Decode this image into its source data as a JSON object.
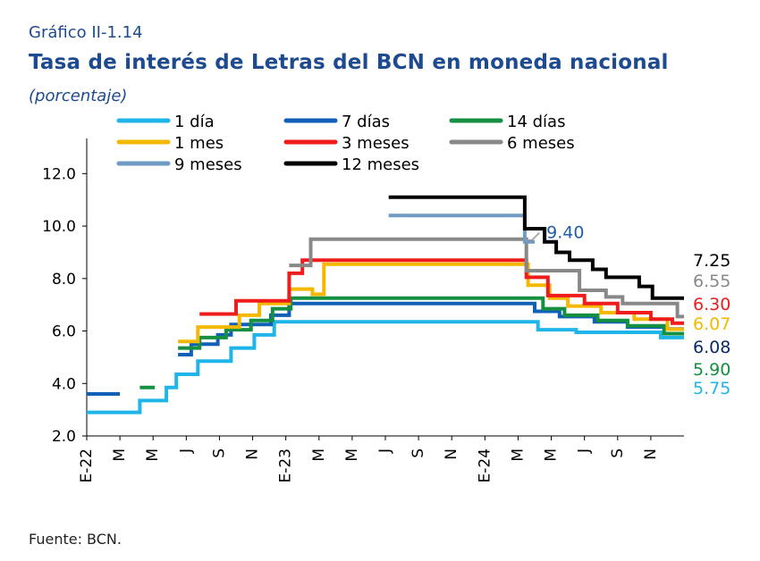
{
  "header": {
    "number": "Gráfico II-1.14",
    "title": "Tasa de interés de Letras del BCN en moneda nacional",
    "subtitle": "(porcentaje)"
  },
  "source": "Fuente: BCN.",
  "chart_data": {
    "type": "line",
    "ylim": [
      2.0,
      13.0
    ],
    "yticks": [
      "2.0",
      "4.0",
      "6.0",
      "8.0",
      "10.0",
      "12.0"
    ],
    "xlabel": "",
    "ylabel": "",
    "grid": false,
    "legend": "top",
    "x_range": [
      0,
      36
    ],
    "x_ticks": [
      {
        "x": 0,
        "label": "E-22"
      },
      {
        "x": 2,
        "label": "M"
      },
      {
        "x": 4,
        "label": "M"
      },
      {
        "x": 6,
        "label": "J"
      },
      {
        "x": 8,
        "label": "S"
      },
      {
        "x": 10,
        "label": "N"
      },
      {
        "x": 12,
        "label": "E-23"
      },
      {
        "x": 14,
        "label": "M"
      },
      {
        "x": 16,
        "label": "M"
      },
      {
        "x": 18,
        "label": "J"
      },
      {
        "x": 20,
        "label": "S"
      },
      {
        "x": 22,
        "label": "N"
      },
      {
        "x": 24,
        "label": "E-24"
      },
      {
        "x": 26,
        "label": "M"
      },
      {
        "x": 28,
        "label": "M"
      },
      {
        "x": 30,
        "label": "J"
      },
      {
        "x": 32,
        "label": "S"
      },
      {
        "x": 34,
        "label": "N"
      }
    ],
    "annotation": {
      "text": "9.40",
      "color": "#1f5fa8",
      "x": 26.2,
      "y": 9.4
    },
    "series": [
      {
        "name": "1 día",
        "color": "#1fb5e8",
        "end_label": "5.75",
        "segments": [
          [
            [
              0,
              2.9
            ],
            [
              3.2,
              2.9
            ],
            [
              3.2,
              3.35
            ],
            [
              4.8,
              3.35
            ],
            [
              4.8,
              3.85
            ],
            [
              5.4,
              3.85
            ],
            [
              5.4,
              4.35
            ],
            [
              6.7,
              4.35
            ],
            [
              6.7,
              4.85
            ],
            [
              8.7,
              4.85
            ],
            [
              8.7,
              5.35
            ],
            [
              10.1,
              5.35
            ],
            [
              10.1,
              5.85
            ],
            [
              11.3,
              5.85
            ],
            [
              11.3,
              6.35
            ],
            [
              27.2,
              6.35
            ],
            [
              27.2,
              6.05
            ],
            [
              29.5,
              6.05
            ],
            [
              29.5,
              5.95
            ],
            [
              34.6,
              5.95
            ],
            [
              34.6,
              5.75
            ],
            [
              36,
              5.75
            ]
          ]
        ]
      },
      {
        "name": "7 días",
        "color": "#1060b8",
        "end_label": "6.08",
        "segments": [
          [
            [
              0,
              3.6
            ],
            [
              2,
              3.6
            ]
          ],
          [
            [
              5.5,
              5.1
            ],
            [
              6.3,
              5.1
            ],
            [
              6.3,
              5.5
            ],
            [
              7.9,
              5.5
            ],
            [
              7.9,
              5.85
            ],
            [
              8.7,
              5.85
            ],
            [
              8.7,
              6.25
            ],
            [
              11.1,
              6.25
            ],
            [
              11.1,
              6.6
            ],
            [
              12.2,
              6.6
            ],
            [
              12.2,
              7.05
            ],
            [
              27.0,
              7.05
            ],
            [
              27.0,
              6.75
            ],
            [
              28.5,
              6.75
            ],
            [
              28.5,
              6.55
            ],
            [
              30.6,
              6.55
            ],
            [
              30.6,
              6.35
            ],
            [
              32.6,
              6.35
            ],
            [
              32.6,
              6.15
            ],
            [
              35.0,
              6.15
            ],
            [
              35.0,
              6.08
            ],
            [
              36,
              6.08
            ]
          ]
        ]
      },
      {
        "name": "14 días",
        "color": "#149040",
        "end_label": "5.90",
        "segments": [
          [
            [
              3.2,
              3.85
            ],
            [
              4.1,
              3.85
            ]
          ],
          [
            [
              5.5,
              5.35
            ],
            [
              6.8,
              5.35
            ],
            [
              6.8,
              5.75
            ],
            [
              8.4,
              5.75
            ],
            [
              8.4,
              6.05
            ],
            [
              9.9,
              6.05
            ],
            [
              9.9,
              6.4
            ],
            [
              11.2,
              6.4
            ],
            [
              11.2,
              6.85
            ],
            [
              12.3,
              6.85
            ],
            [
              12.3,
              7.25
            ],
            [
              27.5,
              7.25
            ],
            [
              27.5,
              6.85
            ],
            [
              28.8,
              6.85
            ],
            [
              28.8,
              6.6
            ],
            [
              30.8,
              6.6
            ],
            [
              30.8,
              6.4
            ],
            [
              32.6,
              6.4
            ],
            [
              32.6,
              6.2
            ],
            [
              34.8,
              6.2
            ],
            [
              34.8,
              5.9
            ],
            [
              36,
              5.9
            ]
          ]
        ]
      },
      {
        "name": "1 mes",
        "color": "#f5b800",
        "end_label": "6.07",
        "segments": [
          [
            [
              5.5,
              5.6
            ],
            [
              6.7,
              5.6
            ],
            [
              6.7,
              6.15
            ],
            [
              9.2,
              6.15
            ],
            [
              9.2,
              6.6
            ],
            [
              10.4,
              6.6
            ],
            [
              10.4,
              7.05
            ],
            [
              12.2,
              7.05
            ],
            [
              12.2,
              7.6
            ],
            [
              13.6,
              7.6
            ],
            [
              13.6,
              7.4
            ],
            [
              14.3,
              7.4
            ],
            [
              14.3,
              8.55
            ],
            [
              26.6,
              8.55
            ],
            [
              26.6,
              7.75
            ],
            [
              27.9,
              7.75
            ],
            [
              27.9,
              7.25
            ],
            [
              29.0,
              7.25
            ],
            [
              29.0,
              6.95
            ],
            [
              31.0,
              6.95
            ],
            [
              31.0,
              6.7
            ],
            [
              33.0,
              6.7
            ],
            [
              33.0,
              6.45
            ],
            [
              35.0,
              6.45
            ],
            [
              35.0,
              6.07
            ],
            [
              36,
              6.07
            ]
          ]
        ]
      },
      {
        "name": "3 meses",
        "color": "#ee1c1c",
        "end_label": "6.30",
        "segments": [
          [
            [
              6.8,
              6.65
            ],
            [
              9.0,
              6.65
            ],
            [
              9.0,
              7.15
            ],
            [
              12.2,
              7.15
            ],
            [
              12.2,
              8.2
            ],
            [
              13.0,
              8.2
            ],
            [
              13.0,
              8.7
            ],
            [
              26.5,
              8.7
            ],
            [
              26.5,
              8.05
            ],
            [
              27.8,
              8.05
            ],
            [
              27.8,
              7.35
            ],
            [
              30.0,
              7.35
            ],
            [
              30.0,
              7.05
            ],
            [
              32.0,
              7.05
            ],
            [
              32.0,
              6.7
            ],
            [
              34.0,
              6.7
            ],
            [
              34.0,
              6.45
            ],
            [
              35.3,
              6.45
            ],
            [
              35.3,
              6.3
            ],
            [
              36,
              6.3
            ]
          ]
        ]
      },
      {
        "name": "6 meses",
        "color": "#888888",
        "end_label": "6.55",
        "segments": [
          [
            [
              12.2,
              8.5
            ],
            [
              13.5,
              8.5
            ],
            [
              13.5,
              9.5
            ],
            [
              26.5,
              9.5
            ],
            [
              26.5,
              8.3
            ],
            [
              29.7,
              8.3
            ],
            [
              29.7,
              7.55
            ],
            [
              31.3,
              7.55
            ],
            [
              31.3,
              7.3
            ],
            [
              32.3,
              7.3
            ],
            [
              32.3,
              7.05
            ],
            [
              35.6,
              7.05
            ],
            [
              35.6,
              6.55
            ],
            [
              36,
              6.55
            ]
          ]
        ]
      },
      {
        "name": "9 meses",
        "color": "#6f9ac4",
        "end_label": "",
        "segments": [
          [
            [
              18.2,
              10.4
            ],
            [
              26.4,
              10.4
            ],
            [
              26.4,
              9.4
            ],
            [
              27.0,
              9.4
            ]
          ]
        ]
      },
      {
        "name": "12 meses",
        "color": "#000000",
        "end_label": "7.25",
        "segments": [
          [
            [
              18.2,
              11.1
            ],
            [
              26.4,
              11.1
            ],
            [
              26.4,
              9.9
            ],
            [
              27.6,
              9.9
            ],
            [
              27.6,
              9.4
            ],
            [
              28.3,
              9.4
            ],
            [
              28.3,
              9.0
            ],
            [
              29.1,
              9.0
            ],
            [
              29.1,
              8.7
            ],
            [
              30.5,
              8.7
            ],
            [
              30.5,
              8.35
            ],
            [
              31.3,
              8.35
            ],
            [
              31.3,
              8.05
            ],
            [
              33.3,
              8.05
            ],
            [
              33.3,
              7.7
            ],
            [
              34.1,
              7.7
            ],
            [
              34.1,
              7.25
            ],
            [
              36,
              7.25
            ]
          ]
        ]
      }
    ]
  }
}
